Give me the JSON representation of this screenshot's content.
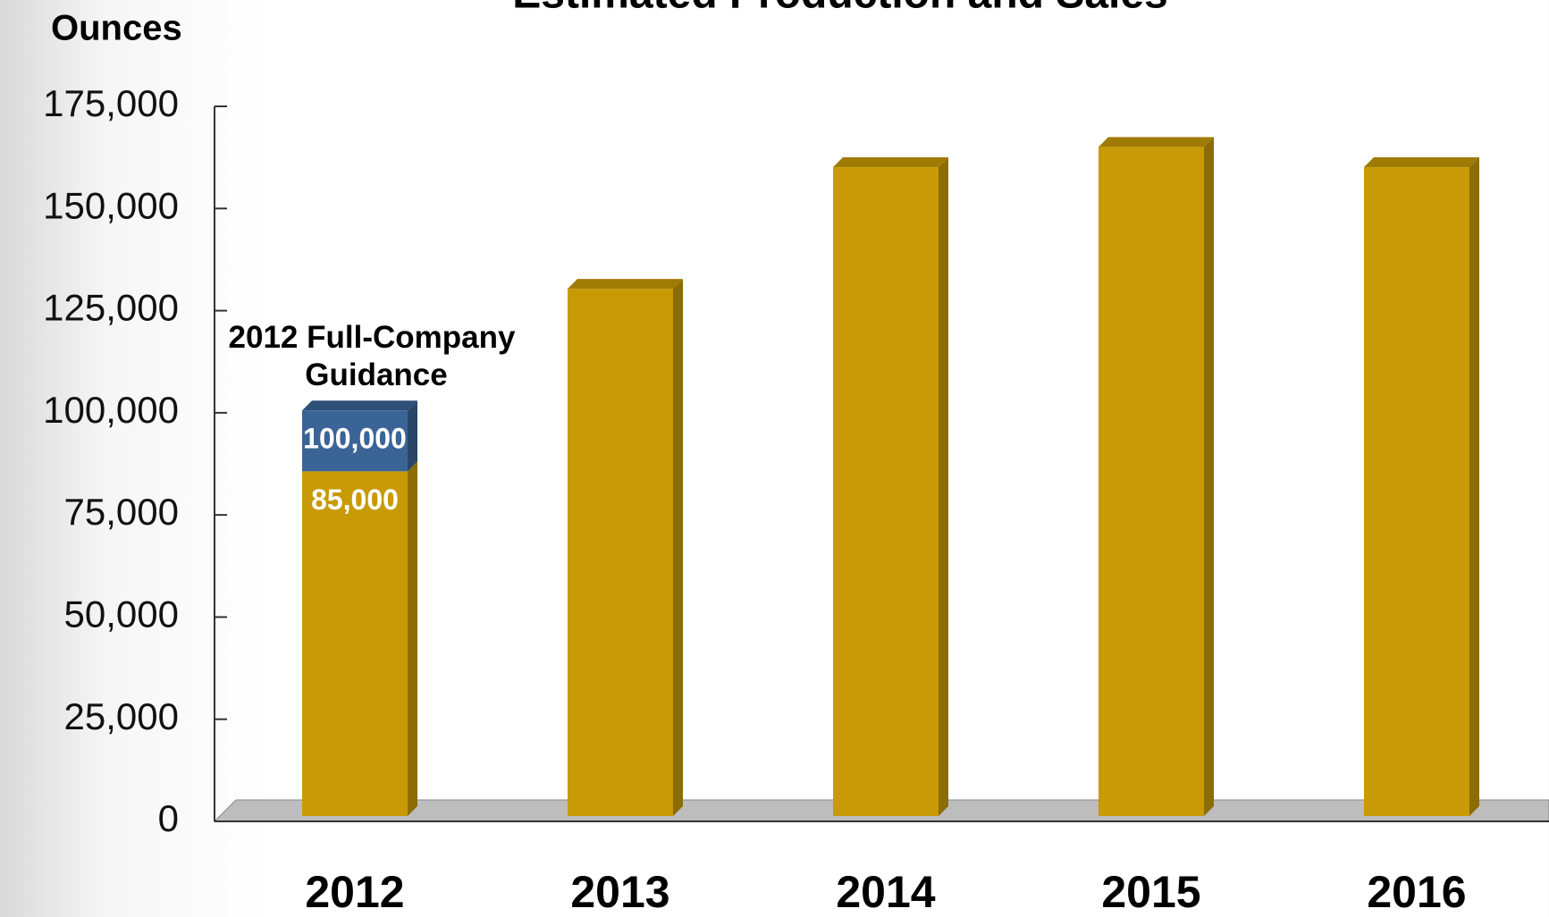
{
  "chart_data": {
    "type": "stacked_bar",
    "title": "Estimated Production and Sales",
    "y_label": "Ounces",
    "annotation": "2012 Full-Company Guidance",
    "categories": [
      "2012",
      "2013",
      "2014",
      "2015",
      "2016"
    ],
    "series": [
      {
        "color": "#c89a05",
        "values": [
          85000,
          130000,
          160000,
          165000,
          160000
        ],
        "value_labels": [
          "85,000",
          null,
          null,
          null,
          null
        ]
      },
      {
        "color": "#3a6496",
        "values": [
          15000,
          null,
          null,
          null,
          null
        ]
      }
    ],
    "total_label": {
      "value": 100000,
      "label": "100,000"
    },
    "ylim": [
      0,
      175000
    ],
    "yticks": [
      0,
      {
        "value": 25000,
        "label": "25,000"
      },
      {
        "value": 50000,
        "label": "50,000"
      },
      {
        "value": 75000,
        "label": "75,000"
      },
      {
        "value": 100000,
        "label": "100,000"
      },
      {
        "value": 125000,
        "label": "125,000"
      },
      {
        "value": 150000,
        "label": "150,000"
      },
      {
        "value": 175000,
        "label": "175,000"
      }
    ]
  }
}
